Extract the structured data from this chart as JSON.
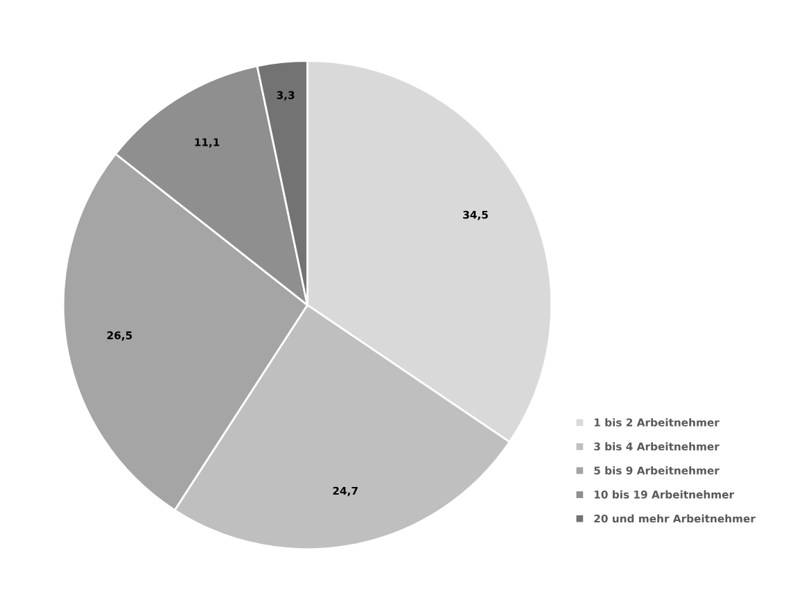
{
  "chart_data": {
    "type": "pie",
    "categories": [
      "1 bis 2 Arbeitnehmer",
      "3 bis 4 Arbeitnehmer",
      "5 bis 9 Arbeitnehmer",
      "10 bis 19 Arbeitnehmer",
      "20 und mehr Arbeitnehmer"
    ],
    "values": [
      34.5,
      24.7,
      26.5,
      11.1,
      3.3
    ],
    "value_labels": [
      "34,5",
      "24,7",
      "26,5",
      "11,1",
      "3,3"
    ],
    "colors": [
      "#d9d9d9",
      "#bfbfbf",
      "#a5a5a5",
      "#8f8f8f",
      "#737373"
    ],
    "legend": "right"
  }
}
